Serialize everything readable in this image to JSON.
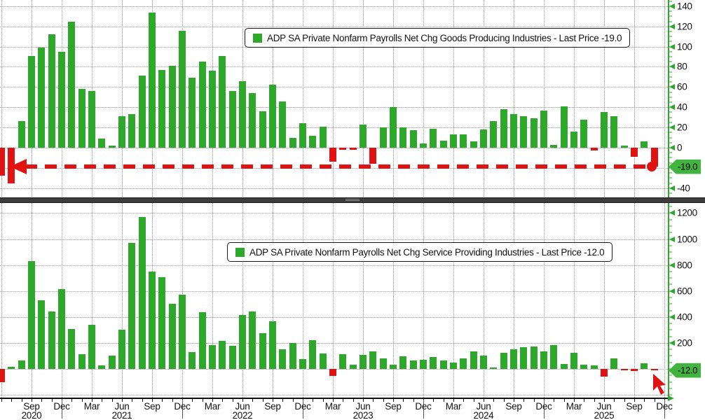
{
  "colors": {
    "green": "#2ea82a",
    "red": "#e01212",
    "badge_green": "#41b33e",
    "grid": "#9a9a9a",
    "axis_text": "#111111",
    "divider": "#3c3c3c"
  },
  "chart_data": [
    {
      "type": "bar",
      "panel": "goods",
      "legend": "ADP SA Private Nonfarm Payrolls Net Chg Goods Producing Industries - Last Price -19.0",
      "last_price": -19.0,
      "last_price_label": "-19.0",
      "ylim": [
        -50,
        146
      ],
      "yticks": [
        140,
        120,
        100,
        80,
        60,
        40,
        20,
        0,
        -40
      ],
      "grid_values": [
        -40,
        -20,
        0,
        20,
        40,
        60,
        80,
        100,
        120,
        140
      ],
      "minor_tick_step": 5,
      "legend_position": "top-center",
      "annotations": {
        "dashed_line_at_last_price": true,
        "left_arrowhead": true,
        "dot_at_last_bar": true
      },
      "values": [
        -28,
        -35,
        26,
        91,
        99,
        112,
        95,
        125,
        58,
        56,
        9,
        2,
        31,
        33,
        71,
        134,
        77,
        81,
        116,
        69,
        85,
        76,
        91,
        56,
        66,
        54,
        36,
        62,
        46,
        10,
        24,
        12,
        21,
        -14,
        -2,
        -2,
        23,
        -16,
        20,
        40,
        20,
        17,
        4,
        19,
        7,
        13,
        13,
        6,
        18,
        26,
        38,
        33,
        31,
        29,
        37,
        3,
        41,
        16,
        28,
        -3,
        35,
        31,
        2,
        -9,
        6,
        -19
      ]
    },
    {
      "type": "bar",
      "panel": "services",
      "legend": "ADP SA Private Nonfarm Payrolls Net Chg Service Providing Industries - Last Price -12.0",
      "last_price": -12.0,
      "last_price_label": "-12.0",
      "ylim": [
        -222,
        1272
      ],
      "yticks": [
        1200,
        1000,
        800,
        600,
        400,
        200
      ],
      "grid_values": [
        -200,
        0,
        200,
        400,
        600,
        800,
        1000,
        1200
      ],
      "minor_tick_step": 50,
      "legend_position": "top-center",
      "annotations": {
        "red_cursor_arrow_at_last_bar": true
      },
      "values": [
        -100,
        15,
        65,
        830,
        530,
        443,
        612,
        306,
        113,
        338,
        25,
        103,
        302,
        970,
        1170,
        750,
        707,
        499,
        570,
        131,
        437,
        185,
        218,
        176,
        416,
        443,
        275,
        369,
        149,
        198,
        77,
        221,
        117,
        -56,
        113,
        32,
        106,
        135,
        83,
        34,
        95,
        63,
        70,
        94,
        67,
        50,
        81,
        135,
        101,
        10,
        126,
        151,
        169,
        175,
        135,
        184,
        40,
        125,
        34,
        29,
        -59,
        79,
        -5,
        -18,
        43,
        -12
      ]
    }
  ],
  "x_axis": {
    "months": [
      "Jun 2020",
      "Jul 2020",
      "Aug 2020",
      "Sep 2020",
      "Oct 2020",
      "Nov 2020",
      "Dec 2020",
      "Jan 2021",
      "Feb 2021",
      "Mar 2021",
      "Apr 2021",
      "May 2021",
      "Jun 2021",
      "Jul 2021",
      "Aug 2021",
      "Sep 2021",
      "Oct 2021",
      "Nov 2021",
      "Dec 2021",
      "Jan 2022",
      "Feb 2022",
      "Mar 2022",
      "Apr 2022",
      "May 2022",
      "Jun 2022",
      "Jul 2022",
      "Aug 2022",
      "Sep 2022",
      "Oct 2022",
      "Nov 2022",
      "Dec 2022",
      "Jan 2023",
      "Feb 2023",
      "Mar 2023",
      "Apr 2023",
      "May 2023",
      "Jun 2023",
      "Jul 2023",
      "Aug 2023",
      "Sep 2023",
      "Oct 2023",
      "Nov 2023",
      "Dec 2023",
      "Jan 2024",
      "Feb 2024",
      "Mar 2024",
      "Apr 2024",
      "May 2024",
      "Jun 2024",
      "Jul 2024",
      "Aug 2024",
      "Sep 2024",
      "Oct 2024",
      "Nov 2024",
      "Dec 2024",
      "Jan 2025",
      "Feb 2025",
      "Mar 2025",
      "Apr 2025",
      "May 2025",
      "Jun 2025",
      "Jul 2025",
      "Aug 2025",
      "Sep 2025",
      "Oct 2025",
      "Nov 2025"
    ],
    "quarter_ticks": [
      {
        "i": 3,
        "label": "Sep",
        "year": "2020"
      },
      {
        "i": 6,
        "label": "Dec"
      },
      {
        "i": 9,
        "label": "Mar"
      },
      {
        "i": 12,
        "label": "Jun",
        "year": "2021"
      },
      {
        "i": 15,
        "label": "Sep"
      },
      {
        "i": 18,
        "label": "Dec"
      },
      {
        "i": 21,
        "label": "Mar"
      },
      {
        "i": 24,
        "label": "Jun",
        "year": "2022"
      },
      {
        "i": 27,
        "label": "Sep"
      },
      {
        "i": 30,
        "label": "Dec"
      },
      {
        "i": 33,
        "label": "Mar"
      },
      {
        "i": 36,
        "label": "Jun",
        "year": "2023"
      },
      {
        "i": 39,
        "label": "Sep"
      },
      {
        "i": 42,
        "label": "Dec"
      },
      {
        "i": 45,
        "label": "Mar"
      },
      {
        "i": 48,
        "label": "Jun",
        "year": "2024"
      },
      {
        "i": 51,
        "label": "Sep"
      },
      {
        "i": 54,
        "label": "Dec"
      },
      {
        "i": 57,
        "label": "Mar"
      },
      {
        "i": 60,
        "label": "Jun",
        "year": "2025"
      },
      {
        "i": 63,
        "label": "Sep"
      },
      {
        "i": 66,
        "label": "Dec"
      }
    ],
    "year_separator_indices": [
      6,
      18,
      30,
      42,
      54,
      66
    ]
  }
}
